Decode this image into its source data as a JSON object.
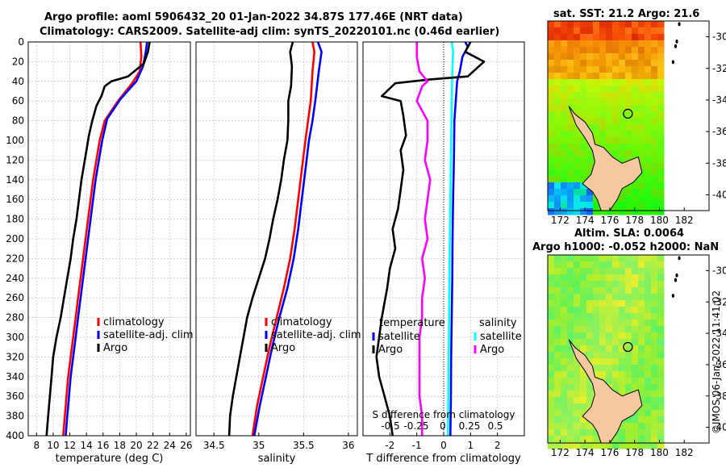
{
  "title_line1": "Argo profile: aoml 5906432_20 01-Jan-2022 34.87S 177.46E (NRT data)",
  "title_line2": "Climatology: CARS2009. Satellite-adj clim: synTS_20220101.nc (0.46d earlier)",
  "map1_title": "sat. SST: 21.2 Argo: 21.6",
  "map2_title1": "Altim. SLA: 0.0064",
  "map2_title2": "Argo h1000: -0.052 h2000: NaN",
  "timestamp": "©IMOS 06-Jan-2022 11:41:02",
  "colors": {
    "climatology": "#ff0000",
    "satellite": "#0000ff",
    "argo": "#000000",
    "sat_salinity": "#00ffff",
    "argo_salinity": "#ff00ff",
    "land": "#f5c8a0"
  },
  "chart_data": [
    {
      "type": "line",
      "id": "temperature",
      "xlabel": "temperature (deg C)",
      "ylabel": "",
      "xlim": [
        7,
        26.5
      ],
      "ylim": [
        400,
        0
      ],
      "xticks": [
        8,
        10,
        12,
        14,
        16,
        18,
        20,
        22,
        24,
        26
      ],
      "yticks": [
        0,
        20,
        40,
        60,
        80,
        100,
        120,
        140,
        160,
        180,
        200,
        220,
        240,
        260,
        280,
        300,
        320,
        340,
        360,
        380,
        400
      ],
      "legend": [
        "climatology",
        "satellite-adj. clim",
        "Argo"
      ],
      "series": [
        {
          "name": "climatology",
          "color": "#ff0000",
          "points": [
            [
              20.5,
              0
            ],
            [
              20.6,
              15
            ],
            [
              20.4,
              30
            ],
            [
              19.5,
              42
            ],
            [
              17.8,
              60
            ],
            [
              16.2,
              80
            ],
            [
              15.6,
              100
            ],
            [
              15.2,
              120
            ],
            [
              14.8,
              140
            ],
            [
              14.5,
              160
            ],
            [
              14.2,
              180
            ],
            [
              13.9,
              200
            ],
            [
              13.6,
              220
            ],
            [
              13.3,
              240
            ],
            [
              13.0,
              260
            ],
            [
              12.7,
              280
            ],
            [
              12.4,
              300
            ],
            [
              12.1,
              320
            ],
            [
              11.8,
              340
            ],
            [
              11.6,
              360
            ],
            [
              11.4,
              380
            ],
            [
              11.2,
              400
            ]
          ]
        },
        {
          "name": "satellite-adj. clim",
          "color": "#0000ff",
          "points": [
            [
              21.3,
              0
            ],
            [
              21.1,
              12
            ],
            [
              20.8,
              25
            ],
            [
              20.0,
              40
            ],
            [
              18.1,
              58
            ],
            [
              16.5,
              78
            ],
            [
              15.9,
              100
            ],
            [
              15.5,
              120
            ],
            [
              15.1,
              140
            ],
            [
              14.8,
              160
            ],
            [
              14.5,
              180
            ],
            [
              14.2,
              200
            ],
            [
              13.9,
              220
            ],
            [
              13.6,
              240
            ],
            [
              13.3,
              260
            ],
            [
              13.0,
              280
            ],
            [
              12.7,
              300
            ],
            [
              12.4,
              320
            ],
            [
              12.1,
              340
            ],
            [
              11.9,
              360
            ],
            [
              11.7,
              380
            ],
            [
              11.5,
              400
            ]
          ]
        },
        {
          "name": "Argo",
          "color": "#000000",
          "points": [
            [
              21.6,
              0
            ],
            [
              21.4,
              10
            ],
            [
              20.9,
              22
            ],
            [
              19.0,
              35
            ],
            [
              17.0,
              40
            ],
            [
              16.2,
              45
            ],
            [
              15.8,
              55
            ],
            [
              15.2,
              65
            ],
            [
              14.7,
              80
            ],
            [
              14.3,
              95
            ],
            [
              14.0,
              110
            ],
            [
              13.7,
              125
            ],
            [
              13.4,
              140
            ],
            [
              13.1,
              160
            ],
            [
              12.8,
              180
            ],
            [
              12.4,
              200
            ],
            [
              12.1,
              220
            ],
            [
              11.7,
              240
            ],
            [
              11.3,
              260
            ],
            [
              10.9,
              280
            ],
            [
              10.4,
              300
            ],
            [
              10.0,
              320
            ],
            [
              9.8,
              340
            ],
            [
              9.6,
              360
            ],
            [
              9.4,
              380
            ],
            [
              9.2,
              400
            ]
          ]
        }
      ]
    },
    {
      "type": "line",
      "id": "salinity",
      "xlabel": "salinity",
      "ylabel": "",
      "xlim": [
        34.3,
        36.1
      ],
      "ylim": [
        400,
        0
      ],
      "xticks": [
        34.5,
        35,
        35.5,
        36
      ],
      "yticks": [],
      "legend": [
        "climatology",
        "satellite-adj. clim",
        "Argo"
      ],
      "series": [
        {
          "name": "climatology",
          "color": "#ff0000",
          "points": [
            [
              35.6,
              0
            ],
            [
              35.62,
              10
            ],
            [
              35.6,
              30
            ],
            [
              35.58,
              60
            ],
            [
              35.55,
              80
            ],
            [
              35.52,
              100
            ],
            [
              35.48,
              130
            ],
            [
              35.44,
              160
            ],
            [
              35.4,
              190
            ],
            [
              35.35,
              220
            ],
            [
              35.28,
              250
            ],
            [
              35.2,
              280
            ],
            [
              35.12,
              310
            ],
            [
              35.05,
              340
            ],
            [
              34.98,
              370
            ],
            [
              34.93,
              400
            ]
          ]
        },
        {
          "name": "satellite-adj. clim",
          "color": "#0000ff",
          "points": [
            [
              35.66,
              0
            ],
            [
              35.7,
              10
            ],
            [
              35.67,
              30
            ],
            [
              35.63,
              60
            ],
            [
              35.6,
              80
            ],
            [
              35.56,
              100
            ],
            [
              35.52,
              130
            ],
            [
              35.48,
              160
            ],
            [
              35.44,
              190
            ],
            [
              35.39,
              220
            ],
            [
              35.32,
              250
            ],
            [
              35.23,
              280
            ],
            [
              35.15,
              310
            ],
            [
              35.08,
              340
            ],
            [
              35.01,
              370
            ],
            [
              34.95,
              400
            ]
          ]
        },
        {
          "name": "Argo",
          "color": "#000000",
          "points": [
            [
              35.38,
              0
            ],
            [
              35.35,
              10
            ],
            [
              35.37,
              25
            ],
            [
              35.36,
              45
            ],
            [
              35.33,
              60
            ],
            [
              35.33,
              80
            ],
            [
              35.32,
              100
            ],
            [
              35.28,
              120
            ],
            [
              35.25,
              140
            ],
            [
              35.21,
              160
            ],
            [
              35.16,
              180
            ],
            [
              35.12,
              200
            ],
            [
              35.07,
              220
            ],
            [
              35.0,
              240
            ],
            [
              34.93,
              260
            ],
            [
              34.87,
              280
            ],
            [
              34.83,
              300
            ],
            [
              34.79,
              320
            ],
            [
              34.75,
              340
            ],
            [
              34.71,
              360
            ],
            [
              34.68,
              380
            ],
            [
              34.67,
              400
            ]
          ]
        }
      ]
    },
    {
      "type": "line",
      "id": "difference",
      "xlabel": "T difference from climatology",
      "xlabel_top": "S difference from climatology",
      "xlim": [
        -3,
        3
      ],
      "ylim": [
        400,
        0
      ],
      "xticks": [
        -2,
        -1,
        0,
        1,
        2
      ],
      "xticks_top": [
        "-0.5",
        "-0.25",
        "0",
        "0.25",
        "0.5"
      ],
      "yticks": [],
      "legend_left_title": "temperature",
      "legend_right_title": "salinity",
      "legend_left": [
        "satellite",
        "Argo"
      ],
      "legend_right": [
        "satellite",
        "Argo"
      ],
      "series": [
        {
          "name": "T satellite",
          "color": "#0000ff",
          "points": [
            [
              0.8,
              0
            ],
            [
              0.9,
              5
            ],
            [
              0.7,
              15
            ],
            [
              0.6,
              30
            ],
            [
              0.5,
              40
            ],
            [
              0.45,
              60
            ],
            [
              0.4,
              80
            ],
            [
              0.38,
              120
            ],
            [
              0.35,
              160
            ],
            [
              0.33,
              200
            ],
            [
              0.32,
              240
            ],
            [
              0.3,
              280
            ],
            [
              0.28,
              320
            ],
            [
              0.27,
              360
            ],
            [
              0.25,
              400
            ]
          ]
        },
        {
          "name": "S satellite",
          "color": "#00ffff",
          "points": [
            [
              0.3,
              0
            ],
            [
              0.35,
              10
            ],
            [
              0.32,
              30
            ],
            [
              0.3,
              60
            ],
            [
              0.28,
              100
            ],
            [
              0.25,
              160
            ],
            [
              0.22,
              220
            ],
            [
              0.2,
              280
            ],
            [
              0.18,
              340
            ],
            [
              0.16,
              400
            ]
          ]
        },
        {
          "name": "T Argo",
          "color": "#000000",
          "points": [
            [
              1.0,
              0
            ],
            [
              0.8,
              10
            ],
            [
              1.5,
              20
            ],
            [
              0.9,
              35
            ],
            [
              -0.5,
              38
            ],
            [
              -1.8,
              42
            ],
            [
              -2.3,
              55
            ],
            [
              -1.6,
              60
            ],
            [
              -1.5,
              75
            ],
            [
              -1.4,
              95
            ],
            [
              -1.6,
              110
            ],
            [
              -1.5,
              130
            ],
            [
              -1.6,
              150
            ],
            [
              -1.7,
              170
            ],
            [
              -1.9,
              190
            ],
            [
              -1.8,
              210
            ],
            [
              -2.0,
              230
            ],
            [
              -2.1,
              250
            ],
            [
              -2.3,
              280
            ],
            [
              -2.4,
              300
            ],
            [
              -2.5,
              320
            ],
            [
              -2.4,
              340
            ],
            [
              -2.2,
              360
            ],
            [
              -2.0,
              380
            ],
            [
              -1.9,
              400
            ]
          ]
        },
        {
          "name": "S Argo",
          "color": "#ff00ff",
          "points": [
            [
              -1.0,
              0
            ],
            [
              -1.0,
              15
            ],
            [
              -0.9,
              30
            ],
            [
              -0.6,
              40
            ],
            [
              -0.8,
              45
            ],
            [
              -1.0,
              60
            ],
            [
              -0.6,
              80
            ],
            [
              -0.6,
              100
            ],
            [
              -0.7,
              120
            ],
            [
              -0.5,
              140
            ],
            [
              -0.6,
              160
            ],
            [
              -0.7,
              180
            ],
            [
              -0.6,
              200
            ],
            [
              -0.8,
              220
            ],
            [
              -0.7,
              240
            ],
            [
              -0.8,
              260
            ],
            [
              -0.8,
              280
            ],
            [
              -0.9,
              300
            ],
            [
              -0.9,
              320
            ],
            [
              -0.9,
              340
            ],
            [
              -0.9,
              360
            ],
            [
              -0.8,
              380
            ],
            [
              -0.8,
              400
            ]
          ]
        }
      ]
    },
    {
      "type": "heatmap",
      "id": "sst_map",
      "xlim": [
        171,
        184
      ],
      "ylim": [
        -41,
        -29
      ],
      "xticks": [
        172,
        174,
        176,
        178,
        180,
        182
      ],
      "yticks": [
        -30,
        -32,
        -34,
        -36,
        -38,
        -40
      ],
      "marker": [
        177.46,
        -34.87
      ]
    },
    {
      "type": "heatmap",
      "id": "sla_map",
      "xlim": [
        171,
        184
      ],
      "ylim": [
        -41,
        -29
      ],
      "xticks": [
        172,
        174,
        176,
        178,
        180,
        182
      ],
      "yticks": [
        -30,
        -32,
        -34,
        -36,
        -38,
        -40
      ],
      "marker": [
        177.46,
        -34.87
      ]
    }
  ]
}
